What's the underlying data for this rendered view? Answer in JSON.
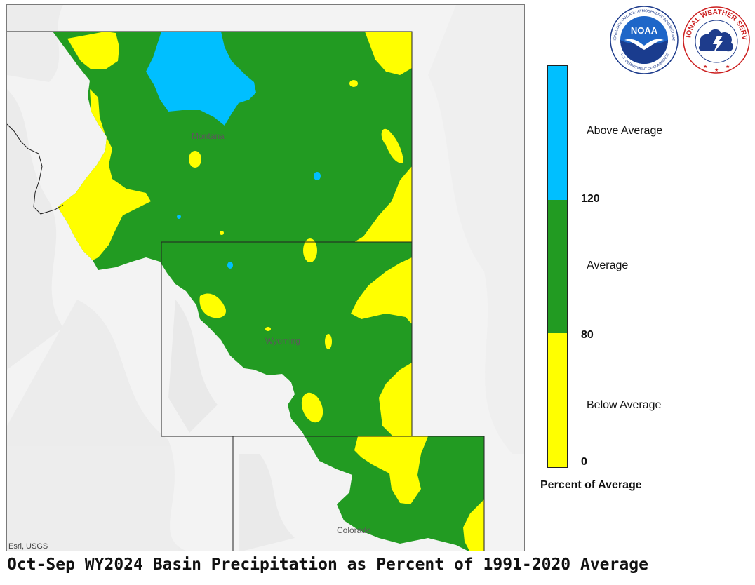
{
  "map": {
    "places": [
      "Montana",
      "Wyoming",
      "Colorado"
    ],
    "attribution": "Esri, USGS"
  },
  "legend": {
    "title": "Percent of Average",
    "categories": [
      {
        "label": "Above Average",
        "color": "#00bfff"
      },
      {
        "label": "Average",
        "color": "#229b22"
      },
      {
        "label": "Below Average",
        "color": "#ffff00"
      }
    ],
    "ticks": [
      "120",
      "80",
      "0"
    ]
  },
  "logos": {
    "noaa": {
      "text": "NOAA",
      "ring_text": "NATIONAL OCEANIC AND ATMOSPHERIC ADMINISTRATION",
      "ring_text_bottom": "U.S. DEPARTMENT OF COMMERCE"
    },
    "nws": {
      "ring_text": "NATIONAL WEATHER SERVICE"
    }
  },
  "title": "Oct-Sep WY2024 Basin Precipitation as Percent of 1991-2020 Average"
}
